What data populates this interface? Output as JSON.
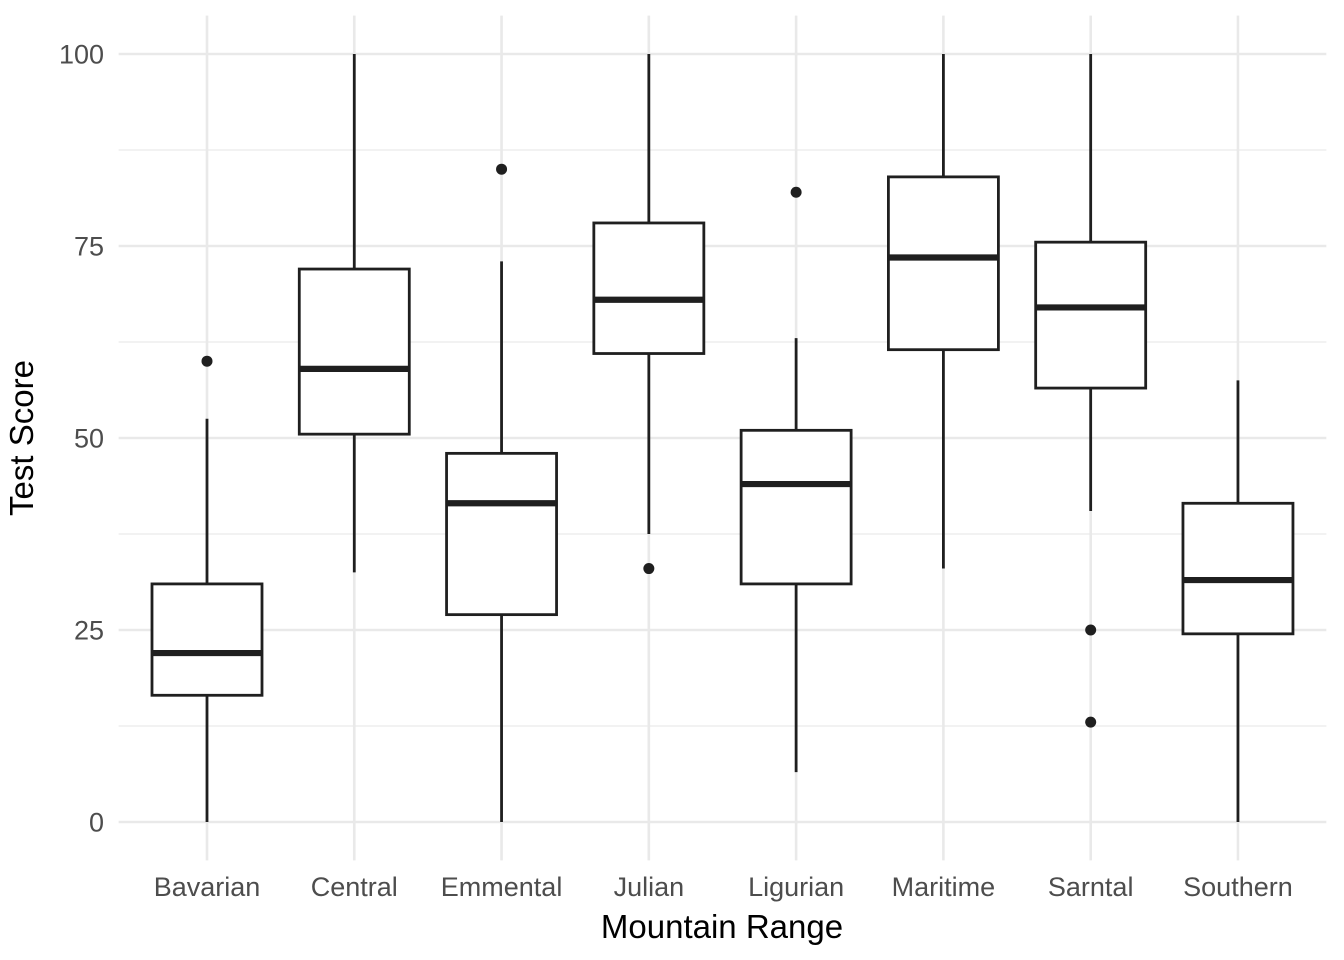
{
  "chart_data": {
    "type": "boxplot",
    "title": "",
    "xlabel": "Mountain Range",
    "ylabel": "Test Score",
    "ylim": [
      0,
      100
    ],
    "yticks": [
      0,
      25,
      50,
      75,
      100
    ],
    "ytick_labels": [
      "0",
      "25",
      "50",
      "75",
      "100"
    ],
    "minor_gridlines": [
      12.5,
      37.5,
      62.5,
      87.5
    ],
    "grid": "on",
    "legend": "none",
    "categories": [
      "Bavarian",
      "Central",
      "Emmental",
      "Julian",
      "Ligurian",
      "Maritime",
      "Sarntal",
      "Southern"
    ],
    "series": [
      {
        "category": "Bavarian",
        "whisker_low": 0,
        "q1": 16.5,
        "median": 22,
        "q3": 31,
        "whisker_high": 52.5,
        "outliers": [
          60
        ]
      },
      {
        "category": "Central",
        "whisker_low": 32.5,
        "q1": 50.5,
        "median": 59,
        "q3": 72,
        "whisker_high": 100,
        "outliers": []
      },
      {
        "category": "Emmental",
        "whisker_low": 0,
        "q1": 27,
        "median": 41.5,
        "q3": 48,
        "whisker_high": 73,
        "outliers": [
          85
        ]
      },
      {
        "category": "Julian",
        "whisker_low": 37.5,
        "q1": 61,
        "median": 68,
        "q3": 78,
        "whisker_high": 100,
        "outliers": [
          33
        ]
      },
      {
        "category": "Ligurian",
        "whisker_low": 6.5,
        "q1": 31,
        "median": 44,
        "q3": 51,
        "whisker_high": 63,
        "outliers": [
          82
        ]
      },
      {
        "category": "Maritime",
        "whisker_low": 33,
        "q1": 61.5,
        "median": 73.5,
        "q3": 84,
        "whisker_high": 100,
        "outliers": []
      },
      {
        "category": "Sarntal",
        "whisker_low": 40.5,
        "q1": 56.5,
        "median": 67,
        "q3": 75.5,
        "whisker_high": 100,
        "outliers": [
          25,
          13
        ]
      },
      {
        "category": "Southern",
        "whisker_low": 0,
        "q1": 24.5,
        "median": 31.5,
        "q3": 41.5,
        "whisker_high": 57.5,
        "outliers": []
      }
    ],
    "style": {
      "box_stroke": "#1f1f1f",
      "box_fill": "#ffffff",
      "outlier_fill": "#1f1f1f",
      "grid_major_color": "#e9e9e9",
      "grid_minor_color": "#ededed",
      "tick_label_color": "#4d4d4d",
      "axis_title_color": "#000000",
      "background": "#ffffff"
    }
  }
}
